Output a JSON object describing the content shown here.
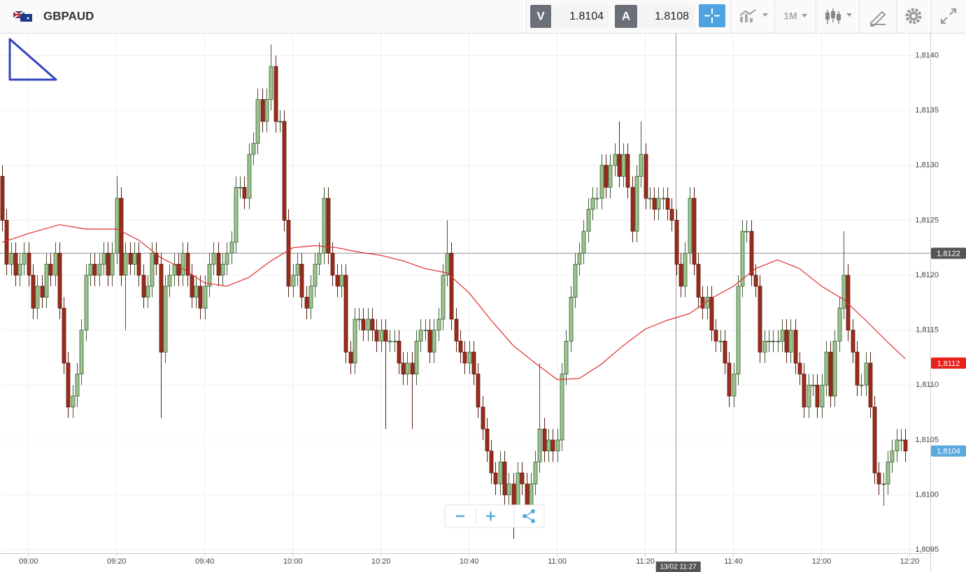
{
  "header": {
    "symbol": "GBPAUD",
    "bid_label": "V",
    "bid": "1.8104",
    "ask_label": "A",
    "ask": "1.8108",
    "timeframe": "1M"
  },
  "chart_data": {
    "type": "candlestick",
    "x": [
      "08:54",
      "08:55",
      "08:56",
      "08:57",
      "08:58",
      "08:59",
      "09:00",
      "09:01",
      "09:02",
      "09:03",
      "09:04",
      "09:05",
      "09:06",
      "09:07",
      "09:08",
      "09:09",
      "09:10",
      "09:11",
      "09:12",
      "09:13",
      "09:14",
      "09:15",
      "09:16",
      "09:17",
      "09:18",
      "09:19",
      "09:20",
      "09:21",
      "09:22",
      "09:23",
      "09:24",
      "09:25",
      "09:26",
      "09:27",
      "09:28",
      "09:29",
      "09:30",
      "09:31",
      "09:32",
      "09:33",
      "09:34",
      "09:35",
      "09:36",
      "09:37",
      "09:38",
      "09:39",
      "09:40",
      "09:41",
      "09:42",
      "09:43",
      "09:44",
      "09:45",
      "09:46",
      "09:47",
      "09:48",
      "09:49",
      "09:50",
      "09:51",
      "09:52",
      "09:53",
      "09:54",
      "09:55",
      "09:56",
      "09:57",
      "09:58",
      "09:59",
      "10:00",
      "10:01",
      "10:02",
      "10:03",
      "10:04",
      "10:05",
      "10:06",
      "10:07",
      "10:08",
      "10:09",
      "10:10",
      "10:11",
      "10:12",
      "10:13",
      "10:14",
      "10:15",
      "10:16",
      "10:17",
      "10:18",
      "10:19",
      "10:20",
      "10:21",
      "10:22",
      "10:23",
      "10:24",
      "10:25",
      "10:26",
      "10:27",
      "10:28",
      "10:29",
      "10:30",
      "10:31",
      "10:32",
      "10:33",
      "10:34",
      "10:35",
      "10:36",
      "10:37",
      "10:38",
      "10:39",
      "10:40",
      "10:41",
      "10:42",
      "10:43",
      "10:44",
      "10:45",
      "10:46",
      "10:47",
      "10:48",
      "10:49",
      "10:50",
      "10:51",
      "10:52",
      "10:53",
      "10:54",
      "10:55",
      "10:56",
      "10:57",
      "10:58",
      "10:59",
      "11:00",
      "11:01",
      "11:02",
      "11:03",
      "11:04",
      "11:05",
      "11:06",
      "11:07",
      "11:08",
      "11:09",
      "11:10",
      "11:11",
      "11:12",
      "11:13",
      "11:14",
      "11:15",
      "11:16",
      "11:17",
      "11:18",
      "11:19",
      "11:20",
      "11:21",
      "11:22",
      "11:23",
      "11:24",
      "11:25",
      "11:26",
      "11:27",
      "11:28",
      "11:29",
      "11:30",
      "11:31",
      "11:32",
      "11:33",
      "11:34",
      "11:35",
      "11:36",
      "11:37",
      "11:38",
      "11:39",
      "11:40",
      "11:41",
      "11:42",
      "11:43",
      "11:44",
      "11:45",
      "11:46",
      "11:47",
      "11:48",
      "11:49",
      "11:50",
      "11:51",
      "11:52",
      "11:53",
      "11:54",
      "11:55",
      "11:56",
      "11:57",
      "11:58",
      "11:59",
      "12:00",
      "12:01",
      "12:02",
      "12:03",
      "12:04",
      "12:05",
      "12:06",
      "12:07",
      "12:08",
      "12:09",
      "12:10",
      "12:11",
      "12:12",
      "12:13",
      "12:14",
      "12:15",
      "12:16",
      "12:17",
      "12:18",
      "12:19"
    ],
    "open": [
      1.8129,
      1.8125,
      1.8121,
      1.8122,
      1.812,
      1.8121,
      1.8122,
      1.812,
      1.8117,
      1.8119,
      1.8118,
      1.8121,
      1.812,
      1.8122,
      1.8117,
      1.8112,
      1.8108,
      1.8109,
      1.8111,
      1.8115,
      1.812,
      1.8121,
      1.812,
      1.8121,
      1.8122,
      1.812,
      1.8122,
      1.8127,
      1.812,
      1.8122,
      1.8121,
      1.8122,
      1.812,
      1.8118,
      1.8119,
      1.8122,
      1.8121,
      1.8113,
      1.8119,
      1.812,
      1.8121,
      1.812,
      1.8122,
      1.812,
      1.8118,
      1.8119,
      1.8117,
      1.8119,
      1.8121,
      1.8122,
      1.812,
      1.8121,
      1.8122,
      1.8123,
      1.8128,
      1.8128,
      1.8127,
      1.8131,
      1.8132,
      1.8136,
      1.8134,
      1.8136,
      1.8139,
      1.8134,
      1.8134,
      1.8125,
      1.8119,
      1.812,
      1.8121,
      1.8118,
      1.8117,
      1.8119,
      1.8121,
      1.8122,
      1.8127,
      1.8122,
      1.812,
      1.8119,
      1.812,
      1.8113,
      1.8112,
      1.8116,
      1.8116,
      1.8115,
      1.8116,
      1.8115,
      1.8114,
      1.8115,
      1.8114,
      1.8114,
      1.8114,
      1.8112,
      1.8111,
      1.8112,
      1.8111,
      1.8114,
      1.8115,
      1.8115,
      1.8113,
      1.8115,
      1.8116,
      1.812,
      1.8122,
      1.8116,
      1.8114,
      1.8113,
      1.8112,
      1.8113,
      1.8111,
      1.8108,
      1.8106,
      1.8104,
      1.8102,
      1.8101,
      1.8103,
      1.81,
      1.8101,
      1.8099,
      1.8102,
      1.8101,
      1.8099,
      1.8101,
      1.8103,
      1.8106,
      1.8104,
      1.8105,
      1.8104,
      1.8105,
      1.8111,
      1.8114,
      1.8118,
      1.8121,
      1.8122,
      1.8124,
      1.8126,
      1.8127,
      1.8127,
      1.813,
      1.8128,
      1.813,
      1.8131,
      1.8129,
      1.8131,
      1.8128,
      1.8124,
      1.8129,
      1.8131,
      1.8127,
      1.8127,
      1.8126,
      1.8127,
      1.8127,
      1.8126,
      1.8125,
      1.8121,
      1.8119,
      1.8122,
      1.8127,
      1.8121,
      1.8118,
      1.8117,
      1.8118,
      1.8115,
      1.8114,
      1.8114,
      1.8112,
      1.8109,
      1.8111,
      1.8119,
      1.8124,
      1.8124,
      1.812,
      1.8119,
      1.8113,
      1.8114,
      1.8114,
      1.8114,
      1.8114,
      1.8115,
      1.8113,
      1.8115,
      1.8112,
      1.8111,
      1.8108,
      1.811,
      1.811,
      1.8108,
      1.811,
      1.8113,
      1.8109,
      1.8114,
      1.8117,
      1.812,
      1.8115,
      1.8113,
      1.811,
      1.811,
      1.8112,
      1.8108,
      1.8102,
      1.8101,
      1.8101,
      1.8103,
      1.8104,
      1.8105,
      1.8105
    ],
    "high": [
      1.813,
      1.8126,
      1.8123,
      1.8123,
      1.8122,
      1.8123,
      1.8123,
      1.8121,
      1.812,
      1.812,
      1.8122,
      1.8122,
      1.8123,
      1.8123,
      1.8118,
      1.8113,
      1.811,
      1.8112,
      1.8116,
      1.8121,
      1.8122,
      1.8122,
      1.8122,
      1.8123,
      1.8123,
      1.8123,
      1.8129,
      1.8128,
      1.8123,
      1.8123,
      1.8123,
      1.8123,
      1.8121,
      1.812,
      1.8123,
      1.8123,
      1.8122,
      1.812,
      1.8121,
      1.8122,
      1.8122,
      1.8123,
      1.8123,
      1.8121,
      1.812,
      1.812,
      1.812,
      1.8122,
      1.8123,
      1.8123,
      1.8122,
      1.8123,
      1.8124,
      1.8129,
      1.8129,
      1.8129,
      1.8132,
      1.8133,
      1.8137,
      1.8137,
      1.8137,
      1.8141,
      1.814,
      1.8135,
      1.8135,
      1.8126,
      1.8121,
      1.8122,
      1.8122,
      1.8119,
      1.812,
      1.8122,
      1.8123,
      1.8128,
      1.8128,
      1.8123,
      1.8121,
      1.8121,
      1.8121,
      1.8114,
      1.8117,
      1.8117,
      1.8117,
      1.8117,
      1.8117,
      1.8116,
      1.8116,
      1.8116,
      1.8115,
      1.8115,
      1.8115,
      1.8113,
      1.8113,
      1.8113,
      1.8115,
      1.8116,
      1.8116,
      1.8116,
      1.8116,
      1.8117,
      1.8121,
      1.8125,
      1.8123,
      1.8117,
      1.8115,
      1.8114,
      1.8114,
      1.8114,
      1.8112,
      1.8109,
      1.8107,
      1.8105,
      1.8103,
      1.8104,
      1.8104,
      1.8102,
      1.8102,
      1.8103,
      1.8103,
      1.8102,
      1.8102,
      1.8104,
      1.8112,
      1.8107,
      1.8106,
      1.8106,
      1.8106,
      1.8112,
      1.8115,
      1.8119,
      1.8122,
      1.8123,
      1.8125,
      1.8127,
      1.8128,
      1.8128,
      1.8131,
      1.8131,
      1.8131,
      1.8132,
      1.8134,
      1.8132,
      1.8132,
      1.8129,
      1.813,
      1.8134,
      1.8132,
      1.8128,
      1.8128,
      1.8128,
      1.8128,
      1.8128,
      1.8127,
      1.8126,
      1.8122,
      1.8123,
      1.8128,
      1.8128,
      1.8122,
      1.8119,
      1.8119,
      1.8119,
      1.8116,
      1.8115,
      1.8115,
      1.8113,
      1.8112,
      1.812,
      1.8125,
      1.8125,
      1.8125,
      1.8121,
      1.812,
      1.8115,
      1.8115,
      1.8115,
      1.8115,
      1.8116,
      1.8116,
      1.8116,
      1.8116,
      1.8113,
      1.8112,
      1.8111,
      1.8111,
      1.8111,
      1.8111,
      1.8114,
      1.8114,
      1.8115,
      1.8118,
      1.8124,
      1.8121,
      1.8116,
      1.8114,
      1.8111,
      1.8113,
      1.8113,
      1.8109,
      1.8103,
      1.8102,
      1.8104,
      1.8105,
      1.8106,
      1.8106,
      1.8106
    ],
    "low": [
      1.8124,
      1.812,
      1.812,
      1.8119,
      1.8119,
      1.812,
      1.8119,
      1.8116,
      1.8116,
      1.8117,
      1.8117,
      1.8119,
      1.8119,
      1.8116,
      1.8111,
      1.8107,
      1.8107,
      1.8108,
      1.811,
      1.8114,
      1.8119,
      1.8119,
      1.8119,
      1.812,
      1.8119,
      1.8119,
      1.8121,
      1.8119,
      1.8115,
      1.812,
      1.812,
      1.8119,
      1.8117,
      1.8117,
      1.8118,
      1.812,
      1.8107,
      1.8112,
      1.8118,
      1.8119,
      1.8119,
      1.8119,
      1.8119,
      1.8117,
      1.8117,
      1.8116,
      1.8116,
      1.8118,
      1.812,
      1.8119,
      1.8119,
      1.812,
      1.8121,
      1.8122,
      1.8127,
      1.8126,
      1.8126,
      1.813,
      1.8131,
      1.8133,
      1.8133,
      1.8135,
      1.8133,
      1.8133,
      1.8124,
      1.8118,
      1.8118,
      1.8119,
      1.8117,
      1.8116,
      1.8116,
      1.8118,
      1.812,
      1.8121,
      1.8121,
      1.8119,
      1.8118,
      1.8118,
      1.8112,
      1.8111,
      1.8111,
      1.8115,
      1.8114,
      1.8114,
      1.8114,
      1.8113,
      1.8113,
      1.8106,
      1.8113,
      1.8113,
      1.8111,
      1.811,
      1.811,
      1.8106,
      1.811,
      1.8113,
      1.8114,
      1.8112,
      1.8112,
      1.8114,
      1.8115,
      1.8119,
      1.8115,
      1.8113,
      1.8112,
      1.8111,
      1.8111,
      1.811,
      1.8107,
      1.8105,
      1.8103,
      1.8101,
      1.81,
      1.81,
      1.8099,
      1.8099,
      1.8096,
      1.8098,
      1.81,
      1.8098,
      1.8098,
      1.81,
      1.8102,
      1.8103,
      1.8103,
      1.8103,
      1.8103,
      1.8104,
      1.811,
      1.8113,
      1.8117,
      1.812,
      1.8121,
      1.8123,
      1.8125,
      1.8126,
      1.8126,
      1.8127,
      1.8127,
      1.8129,
      1.8128,
      1.8128,
      1.8127,
      1.8123,
      1.8123,
      1.8128,
      1.8126,
      1.8126,
      1.8125,
      1.8125,
      1.8126,
      1.8125,
      1.8124,
      1.812,
      1.8118,
      1.8118,
      1.8121,
      1.812,
      1.8117,
      1.8116,
      1.8116,
      1.8114,
      1.8113,
      1.8113,
      1.8111,
      1.8108,
      1.8108,
      1.811,
      1.8118,
      1.8123,
      1.8119,
      1.8118,
      1.8112,
      1.8112,
      1.8113,
      1.8113,
      1.8113,
      1.8113,
      1.8112,
      1.8112,
      1.8111,
      1.811,
      1.8107,
      1.8107,
      1.8109,
      1.8107,
      1.8107,
      1.8109,
      1.8108,
      1.8108,
      1.8113,
      1.8116,
      1.8114,
      1.8112,
      1.8109,
      1.8109,
      1.8109,
      1.8107,
      1.8101,
      1.81,
      1.8099,
      1.81,
      1.8102,
      1.8103,
      1.8104,
      1.8103
    ],
    "close": [
      1.8125,
      1.8121,
      1.8122,
      1.812,
      1.8121,
      1.8122,
      1.812,
      1.8117,
      1.8119,
      1.8118,
      1.8121,
      1.812,
      1.8122,
      1.8117,
      1.8112,
      1.8108,
      1.8109,
      1.8111,
      1.8115,
      1.812,
      1.8121,
      1.812,
      1.8121,
      1.8122,
      1.812,
      1.8122,
      1.8127,
      1.812,
      1.8122,
      1.8121,
      1.8122,
      1.812,
      1.8118,
      1.8119,
      1.8122,
      1.8121,
      1.8113,
      1.8119,
      1.812,
      1.8121,
      1.812,
      1.8122,
      1.812,
      1.8118,
      1.8119,
      1.8117,
      1.8119,
      1.8121,
      1.8122,
      1.812,
      1.8121,
      1.8122,
      1.8123,
      1.8128,
      1.8128,
      1.8127,
      1.8131,
      1.8132,
      1.8136,
      1.8134,
      1.8136,
      1.8139,
      1.8134,
      1.8134,
      1.8125,
      1.8119,
      1.812,
      1.8121,
      1.8118,
      1.8117,
      1.8119,
      1.8121,
      1.8122,
      1.8127,
      1.8122,
      1.812,
      1.8119,
      1.812,
      1.8113,
      1.8112,
      1.8116,
      1.8116,
      1.8115,
      1.8116,
      1.8115,
      1.8114,
      1.8115,
      1.8114,
      1.8114,
      1.8114,
      1.8112,
      1.8111,
      1.8112,
      1.8111,
      1.8114,
      1.8115,
      1.8115,
      1.8113,
      1.8115,
      1.8116,
      1.812,
      1.8122,
      1.8116,
      1.8114,
      1.8113,
      1.8112,
      1.8113,
      1.8111,
      1.8108,
      1.8106,
      1.8104,
      1.8102,
      1.8101,
      1.8103,
      1.81,
      1.8101,
      1.8099,
      1.8102,
      1.8101,
      1.8099,
      1.8101,
      1.8103,
      1.8106,
      1.8104,
      1.8105,
      1.8104,
      1.8105,
      1.8111,
      1.8114,
      1.8118,
      1.8121,
      1.8122,
      1.8124,
      1.8126,
      1.8127,
      1.8127,
      1.813,
      1.8128,
      1.813,
      1.8131,
      1.8129,
      1.8131,
      1.8128,
      1.8124,
      1.8129,
      1.8131,
      1.8127,
      1.8127,
      1.8126,
      1.8127,
      1.8127,
      1.8126,
      1.8125,
      1.8121,
      1.8119,
      1.8122,
      1.8127,
      1.8121,
      1.8118,
      1.8117,
      1.8118,
      1.8115,
      1.8114,
      1.8114,
      1.8112,
      1.8109,
      1.8111,
      1.8119,
      1.8124,
      1.8124,
      1.812,
      1.8119,
      1.8113,
      1.8114,
      1.8114,
      1.8114,
      1.8114,
      1.8115,
      1.8113,
      1.8115,
      1.8112,
      1.8111,
      1.8108,
      1.811,
      1.811,
      1.8108,
      1.811,
      1.8113,
      1.8109,
      1.8114,
      1.8117,
      1.812,
      1.8115,
      1.8113,
      1.811,
      1.811,
      1.8112,
      1.8108,
      1.8102,
      1.8101,
      1.8101,
      1.8103,
      1.8104,
      1.8105,
      1.8105,
      1.8104
    ],
    "up_color": "#9cc48d",
    "down_color": "#9c2b1b",
    "moving_average": {
      "color": "#e02b2b",
      "x": [
        "08:54",
        "09:00",
        "09:07",
        "09:13",
        "09:20",
        "09:25",
        "09:30",
        "09:35",
        "09:40",
        "09:45",
        "09:50",
        "09:55",
        "10:00",
        "10:05",
        "10:10",
        "10:15",
        "10:20",
        "10:25",
        "10:30",
        "10:35",
        "10:40",
        "10:45",
        "10:50",
        "10:55",
        "11:00",
        "11:05",
        "11:10",
        "11:15",
        "11:20",
        "11:25",
        "11:30",
        "11:35",
        "11:40",
        "11:45",
        "11:50",
        "11:55",
        "12:00",
        "12:05",
        "12:10",
        "12:15",
        "12:19"
      ],
      "values": [
        1.8123,
        1.81238,
        1.81246,
        1.81242,
        1.81242,
        1.81232,
        1.81216,
        1.81206,
        1.81193,
        1.8119,
        1.81198,
        1.81213,
        1.81225,
        1.81227,
        1.81225,
        1.81221,
        1.81218,
        1.81213,
        1.81206,
        1.81202,
        1.81184,
        1.81159,
        1.81136,
        1.8112,
        1.81105,
        1.81106,
        1.81119,
        1.81136,
        1.81151,
        1.81159,
        1.81165,
        1.81179,
        1.8119,
        1.81206,
        1.81214,
        1.81206,
        1.8119,
        1.81178,
        1.81159,
        1.81139,
        1.81124
      ]
    },
    "xlim": [
      "08:54",
      "12:25"
    ],
    "xticks": [
      "09:00",
      "09:20",
      "09:40",
      "10:00",
      "10:20",
      "10:40",
      "11:00",
      "11:20",
      "11:40",
      "12:00",
      "12:20"
    ],
    "ylim": [
      1.80947,
      1.8142
    ],
    "yticks": [
      {
        "value": 1.8095,
        "label": "1,8095"
      },
      {
        "value": 1.81,
        "label": "1,8100"
      },
      {
        "value": 1.8105,
        "label": "1,8105"
      },
      {
        "value": 1.811,
        "label": "1,8110"
      },
      {
        "value": 1.8115,
        "label": "1,8115"
      },
      {
        "value": 1.812,
        "label": "1,8120"
      },
      {
        "value": 1.8125,
        "label": "1,8125"
      },
      {
        "value": 1.813,
        "label": "1,8130"
      },
      {
        "value": 1.8135,
        "label": "1,8135"
      },
      {
        "value": 1.814,
        "label": "1,8140"
      }
    ],
    "grid": true,
    "crosshair": {
      "price": {
        "value": 1.8122,
        "label": "1,8122"
      },
      "time": {
        "value": "11:27",
        "label": "13/02 11:27"
      },
      "color": "#555555"
    },
    "price_badges": [
      {
        "value": 1.8112,
        "label": "1,8112",
        "color": "#e8201a"
      },
      {
        "value": 1.8104,
        "label": "1,8104",
        "color": "#5aa9dc"
      }
    ]
  }
}
